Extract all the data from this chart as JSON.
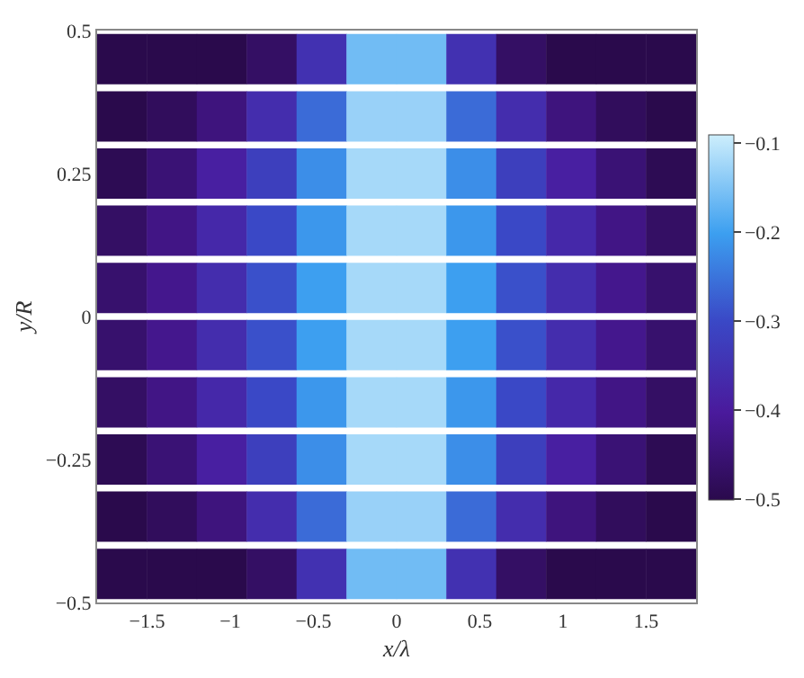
{
  "chart_data": {
    "type": "scatter",
    "xlabel": "x/λ",
    "ylabel": "y/R",
    "marker": "square",
    "x": [
      -1.65,
      -1.35,
      -1.05,
      -0.75,
      -0.45,
      -0.15,
      0.15,
      0.45,
      0.75,
      1.05,
      1.35,
      1.65,
      -1.65,
      -1.35,
      -1.05,
      -0.75,
      -0.45,
      -0.15,
      0.15,
      0.45,
      0.75,
      1.05,
      1.35,
      1.65,
      -1.65,
      -1.35,
      -1.05,
      -0.75,
      -0.45,
      -0.15,
      0.15,
      0.45,
      0.75,
      1.05,
      1.35,
      1.65,
      -1.65,
      -1.35,
      -1.05,
      -0.75,
      -0.45,
      -0.15,
      0.15,
      0.45,
      0.75,
      1.05,
      1.35,
      1.65,
      -1.65,
      -1.35,
      -1.05,
      -0.75,
      -0.45,
      -0.15,
      0.15,
      0.45,
      0.75,
      1.05,
      1.35,
      1.65,
      -1.65,
      -1.35,
      -1.05,
      -0.75,
      -0.45,
      -0.15,
      0.15,
      0.45,
      0.75,
      1.05,
      1.35,
      1.65,
      -1.65,
      -1.35,
      -1.05,
      -0.75,
      -0.45,
      -0.15,
      0.15,
      0.45,
      0.75,
      1.05,
      1.35,
      1.65,
      -1.65,
      -1.35,
      -1.05,
      -0.75,
      -0.45,
      -0.15,
      0.15,
      0.45,
      0.75,
      1.05,
      1.35,
      1.65,
      -1.65,
      -1.35,
      -1.05,
      -0.75,
      -0.45,
      -0.15,
      0.15,
      0.45,
      0.75,
      1.05,
      1.35,
      1.65,
      -1.65,
      -1.35,
      -1.05,
      -0.75,
      -0.45,
      -0.15,
      0.15,
      0.45,
      0.75,
      1.05,
      1.35,
      1.65
    ],
    "values": [
      0.45,
      0.45,
      0.45,
      0.45,
      0.45,
      0.45,
      0.45,
      0.45,
      0.45,
      0.45,
      0.45,
      0.45,
      0.35,
      0.35,
      0.35,
      0.35,
      0.35,
      0.35,
      0.35,
      0.35,
      0.35,
      0.35,
      0.35,
      0.35,
      0.25,
      0.25,
      0.25,
      0.25,
      0.25,
      0.25,
      0.25,
      0.25,
      0.25,
      0.25,
      0.25,
      0.25,
      0.15,
      0.15,
      0.15,
      0.15,
      0.15,
      0.15,
      0.15,
      0.15,
      0.15,
      0.15,
      0.15,
      0.15,
      0.05,
      0.05,
      0.05,
      0.05,
      0.05,
      0.05,
      0.05,
      0.05,
      0.05,
      0.05,
      0.05,
      0.05,
      -0.05,
      -0.05,
      -0.05,
      -0.05,
      -0.05,
      -0.05,
      -0.05,
      -0.05,
      -0.05,
      -0.05,
      -0.05,
      -0.05,
      -0.15,
      -0.15,
      -0.15,
      -0.15,
      -0.15,
      -0.15,
      -0.15,
      -0.15,
      -0.15,
      -0.15,
      -0.15,
      -0.15,
      -0.25,
      -0.25,
      -0.25,
      -0.25,
      -0.25,
      -0.25,
      -0.25,
      -0.25,
      -0.25,
      -0.25,
      -0.25,
      -0.25,
      -0.35,
      -0.35,
      -0.35,
      -0.35,
      -0.35,
      -0.35,
      -0.35,
      -0.35,
      -0.35,
      -0.35,
      -0.35,
      -0.35,
      -0.45,
      -0.45,
      -0.45,
      -0.45,
      -0.45,
      -0.45,
      -0.45,
      -0.45,
      -0.45,
      -0.45,
      -0.45,
      -0.45
    ],
    "cvalues": [
      -0.5,
      -0.5,
      -0.5,
      -0.47,
      -0.35,
      -0.16,
      -0.16,
      -0.35,
      -0.47,
      -0.5,
      -0.5,
      -0.5,
      -0.5,
      -0.48,
      -0.44,
      -0.36,
      -0.26,
      -0.13,
      -0.13,
      -0.26,
      -0.36,
      -0.44,
      -0.48,
      -0.5,
      -0.49,
      -0.45,
      -0.39,
      -0.32,
      -0.22,
      -0.12,
      -0.12,
      -0.22,
      -0.32,
      -0.39,
      -0.45,
      -0.49,
      -0.47,
      -0.43,
      -0.37,
      -0.3,
      -0.21,
      -0.12,
      -0.12,
      -0.21,
      -0.3,
      -0.37,
      -0.43,
      -0.47,
      -0.46,
      -0.42,
      -0.36,
      -0.29,
      -0.2,
      -0.12,
      -0.12,
      -0.2,
      -0.29,
      -0.36,
      -0.42,
      -0.46,
      -0.46,
      -0.42,
      -0.36,
      -0.29,
      -0.2,
      -0.12,
      -0.12,
      -0.2,
      -0.29,
      -0.36,
      -0.42,
      -0.46,
      -0.47,
      -0.43,
      -0.37,
      -0.3,
      -0.21,
      -0.12,
      -0.12,
      -0.21,
      -0.3,
      -0.37,
      -0.43,
      -0.47,
      -0.49,
      -0.45,
      -0.39,
      -0.32,
      -0.22,
      -0.12,
      -0.12,
      -0.22,
      -0.32,
      -0.39,
      -0.45,
      -0.49,
      -0.5,
      -0.48,
      -0.44,
      -0.36,
      -0.26,
      -0.13,
      -0.13,
      -0.26,
      -0.36,
      -0.44,
      -0.48,
      -0.5,
      -0.5,
      -0.5,
      -0.5,
      -0.47,
      -0.35,
      -0.16,
      -0.16,
      -0.35,
      -0.47,
      -0.5,
      -0.5,
      -0.5
    ],
    "xlim": [
      -1.8,
      1.8
    ],
    "xticks": [
      {
        "value": -1.5,
        "label": "−1.5"
      },
      {
        "value": -1,
        "label": "−1"
      },
      {
        "value": -0.5,
        "label": "−0.5"
      },
      0,
      0.5,
      1,
      1.5
    ],
    "ylim": [
      -0.5,
      0.5
    ],
    "yticks": [
      {
        "value": -0.5,
        "label": "−0.5"
      },
      {
        "value": -0.25,
        "label": "−0.25"
      },
      0,
      0.25,
      0.5
    ],
    "clim": [
      -0.5,
      -0.09
    ],
    "cticks": [
      {
        "value": -0.5,
        "label": "−0.5"
      },
      {
        "value": -0.4,
        "label": "−0.4"
      },
      {
        "value": -0.3,
        "label": "−0.3"
      },
      {
        "value": -0.2,
        "label": "−0.2"
      },
      {
        "value": -0.1,
        "label": "−0.1"
      }
    ]
  }
}
